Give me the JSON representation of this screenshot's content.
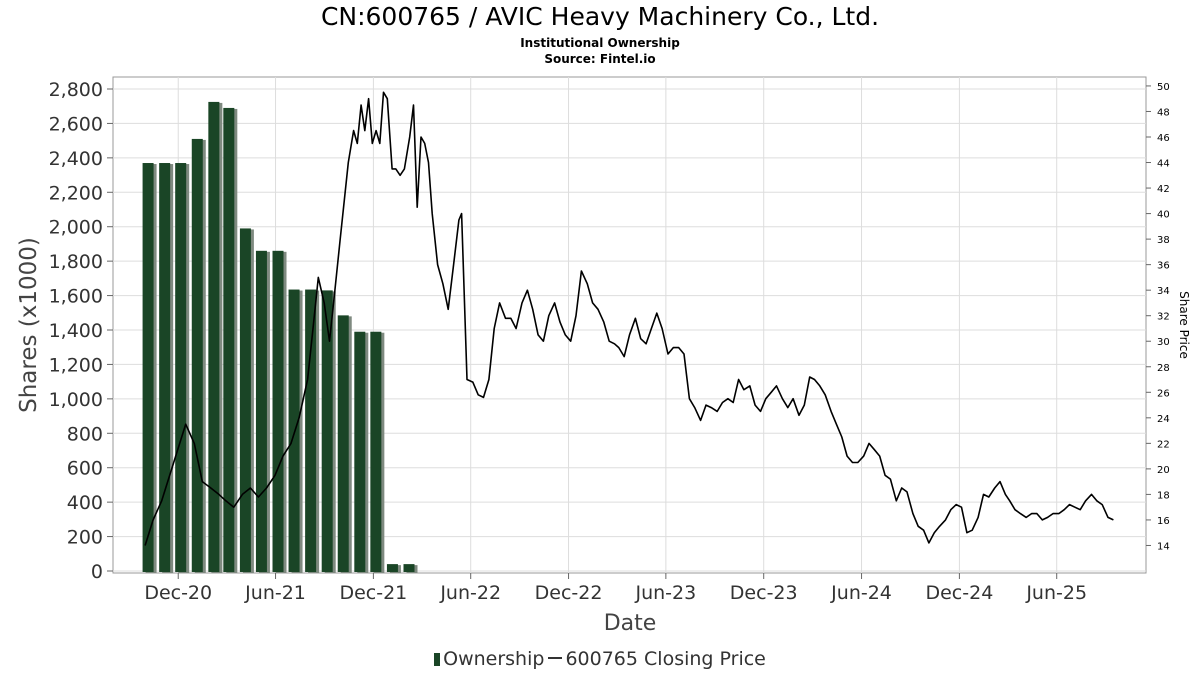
{
  "header": {
    "title": "CN:600765 / AVIC Heavy Machinery Co., Ltd.",
    "subtitle": "Institutional Ownership",
    "source": "Source: Fintel.io"
  },
  "legend": {
    "ownership": "Ownership",
    "price": "600765 Closing Price"
  },
  "colors": {
    "bar": "#1a4526",
    "bar_shadow": "#7f8a80",
    "price_line": "#000000",
    "grid": "#dddddd"
  },
  "chart_data": {
    "type": "bar",
    "xlabel": "Date",
    "ylabel": "Shares (x1000)",
    "y2label": "Share Price",
    "ylim": [
      0,
      2850
    ],
    "y2lim": [
      12.0,
      50.7
    ],
    "yticks": [
      0,
      200,
      400,
      600,
      800,
      1000,
      1200,
      1400,
      1600,
      1800,
      2000,
      2200,
      2400,
      2600,
      2800
    ],
    "yticklabels": [
      "0",
      "200",
      "400",
      "600",
      "800",
      "1,000",
      "1,200",
      "1,400",
      "1,600",
      "1,800",
      "2,000",
      "2,200",
      "2,400",
      "2,600",
      "2,800"
    ],
    "y2ticks": [
      14,
      16,
      18,
      20,
      22,
      24,
      26,
      28,
      30,
      32,
      34,
      36,
      38,
      40,
      42,
      44,
      46,
      48,
      50
    ],
    "xlim": [
      "2020-08-01",
      "2025-11-15"
    ],
    "xticks": [
      "2020-12-01",
      "2021-06-01",
      "2021-12-01",
      "2022-06-01",
      "2022-12-01",
      "2023-06-01",
      "2023-12-01",
      "2024-06-01",
      "2024-12-01",
      "2025-06-01"
    ],
    "xticklabels": [
      "Dec-20",
      "Jun-21",
      "Dec-21",
      "Jun-22",
      "Dec-22",
      "Jun-23",
      "Dec-23",
      "Jun-24",
      "Dec-24",
      "Jun-25"
    ],
    "grid": true,
    "legend_position": "bottom",
    "series": [
      {
        "name": "Ownership",
        "type": "bar",
        "dates": [
          "2020-09-30",
          "2020-10-31",
          "2020-11-30",
          "2020-12-31",
          "2021-01-31",
          "2021-02-28",
          "2021-03-31",
          "2021-04-30",
          "2021-05-31",
          "2021-06-30",
          "2021-07-31",
          "2021-08-31",
          "2021-09-30",
          "2021-10-31",
          "2021-11-30",
          "2021-12-31",
          "2022-01-31"
        ],
        "values": [
          2370,
          2370,
          2370,
          2510,
          2725,
          2690,
          1990,
          1860,
          1860,
          1635,
          1635,
          1630,
          1485,
          1390,
          1390,
          40,
          40
        ]
      },
      {
        "name": "600765 Closing Price",
        "type": "line",
        "points": [
          [
            "2020-09-30",
            14.0
          ],
          [
            "2020-10-15",
            16.0
          ],
          [
            "2020-10-31",
            17.5
          ],
          [
            "2020-11-15",
            19.5
          ],
          [
            "2020-11-30",
            21.5
          ],
          [
            "2020-12-15",
            23.5
          ],
          [
            "2020-12-31",
            22.0
          ],
          [
            "2021-01-15",
            19.0
          ],
          [
            "2021-01-31",
            18.5
          ],
          [
            "2021-02-15",
            18.0
          ],
          [
            "2021-02-28",
            17.5
          ],
          [
            "2021-03-15",
            17.0
          ],
          [
            "2021-03-31",
            18.0
          ],
          [
            "2021-04-15",
            18.5
          ],
          [
            "2021-04-30",
            17.8
          ],
          [
            "2021-05-15",
            18.5
          ],
          [
            "2021-05-31",
            19.5
          ],
          [
            "2021-06-15",
            21.0
          ],
          [
            "2021-06-30",
            22.0
          ],
          [
            "2021-07-15",
            24.0
          ],
          [
            "2021-07-31",
            27.0
          ],
          [
            "2021-08-10",
            31.0
          ],
          [
            "2021-08-20",
            35.0
          ],
          [
            "2021-08-31",
            33.0
          ],
          [
            "2021-09-10",
            30.0
          ],
          [
            "2021-09-20",
            34.0
          ],
          [
            "2021-09-30",
            38.0
          ],
          [
            "2021-10-05",
            40.0
          ],
          [
            "2021-10-15",
            44.0
          ],
          [
            "2021-10-25",
            46.5
          ],
          [
            "2021-11-01",
            45.5
          ],
          [
            "2021-11-08",
            48.5
          ],
          [
            "2021-11-15",
            46.5
          ],
          [
            "2021-11-22",
            49.0
          ],
          [
            "2021-11-29",
            45.5
          ],
          [
            "2021-12-06",
            46.5
          ],
          [
            "2021-12-13",
            45.5
          ],
          [
            "2021-12-20",
            49.5
          ],
          [
            "2021-12-27",
            49.0
          ],
          [
            "2022-01-05",
            43.5
          ],
          [
            "2022-01-12",
            43.5
          ],
          [
            "2022-01-20",
            43.0
          ],
          [
            "2022-01-28",
            43.5
          ],
          [
            "2022-02-07",
            46.0
          ],
          [
            "2022-02-14",
            48.5
          ],
          [
            "2022-02-21",
            40.5
          ],
          [
            "2022-02-28",
            46.0
          ],
          [
            "2022-03-07",
            45.5
          ],
          [
            "2022-03-14",
            44.0
          ],
          [
            "2022-03-21",
            40.0
          ],
          [
            "2022-03-31",
            36.0
          ],
          [
            "2022-04-10",
            34.5
          ],
          [
            "2022-04-20",
            32.5
          ],
          [
            "2022-04-30",
            36.0
          ],
          [
            "2022-05-10",
            39.5
          ],
          [
            "2022-05-15",
            40.0
          ],
          [
            "2022-05-25",
            27.0
          ],
          [
            "2022-06-05",
            26.8
          ],
          [
            "2022-06-15",
            25.8
          ],
          [
            "2022-06-25",
            25.6
          ],
          [
            "2022-07-05",
            27.0
          ],
          [
            "2022-07-15",
            31.0
          ],
          [
            "2022-07-25",
            33.0
          ],
          [
            "2022-08-05",
            31.8
          ],
          [
            "2022-08-15",
            31.8
          ],
          [
            "2022-08-25",
            31.0
          ],
          [
            "2022-09-05",
            33.0
          ],
          [
            "2022-09-15",
            34.0
          ],
          [
            "2022-09-25",
            32.5
          ],
          [
            "2022-10-05",
            30.5
          ],
          [
            "2022-10-15",
            30.0
          ],
          [
            "2022-10-25",
            32.0
          ],
          [
            "2022-11-05",
            33.0
          ],
          [
            "2022-11-15",
            31.5
          ],
          [
            "2022-11-25",
            30.5
          ],
          [
            "2022-12-05",
            30.0
          ],
          [
            "2022-12-15",
            32.0
          ],
          [
            "2022-12-25",
            35.5
          ],
          [
            "2023-01-05",
            34.5
          ],
          [
            "2023-01-15",
            33.0
          ],
          [
            "2023-01-25",
            32.5
          ],
          [
            "2023-02-05",
            31.5
          ],
          [
            "2023-02-15",
            30.0
          ],
          [
            "2023-02-25",
            29.8
          ],
          [
            "2023-03-05",
            29.5
          ],
          [
            "2023-03-15",
            28.8
          ],
          [
            "2023-03-25",
            30.5
          ],
          [
            "2023-04-05",
            31.8
          ],
          [
            "2023-04-15",
            30.2
          ],
          [
            "2023-04-25",
            29.8
          ],
          [
            "2023-05-05",
            31.0
          ],
          [
            "2023-05-15",
            32.2
          ],
          [
            "2023-05-25",
            31.0
          ],
          [
            "2023-06-05",
            29.0
          ],
          [
            "2023-06-15",
            29.5
          ],
          [
            "2023-06-25",
            29.5
          ],
          [
            "2023-07-05",
            29.0
          ],
          [
            "2023-07-15",
            25.5
          ],
          [
            "2023-07-25",
            24.8
          ],
          [
            "2023-08-05",
            23.8
          ],
          [
            "2023-08-15",
            25.0
          ],
          [
            "2023-08-25",
            24.8
          ],
          [
            "2023-09-05",
            24.5
          ],
          [
            "2023-09-15",
            25.2
          ],
          [
            "2023-09-25",
            25.5
          ],
          [
            "2023-10-05",
            25.2
          ],
          [
            "2023-10-15",
            27.0
          ],
          [
            "2023-10-25",
            26.2
          ],
          [
            "2023-11-05",
            26.5
          ],
          [
            "2023-11-15",
            25.0
          ],
          [
            "2023-11-25",
            24.5
          ],
          [
            "2023-12-05",
            25.5
          ],
          [
            "2023-12-15",
            26.0
          ],
          [
            "2023-12-25",
            26.5
          ],
          [
            "2024-01-05",
            25.5
          ],
          [
            "2024-01-15",
            24.8
          ],
          [
            "2024-01-25",
            25.5
          ],
          [
            "2024-02-05",
            24.2
          ],
          [
            "2024-02-15",
            25.0
          ],
          [
            "2024-02-25",
            27.2
          ],
          [
            "2024-03-05",
            27.0
          ],
          [
            "2024-03-15",
            26.5
          ],
          [
            "2024-03-25",
            25.8
          ],
          [
            "2024-04-05",
            24.5
          ],
          [
            "2024-04-15",
            23.5
          ],
          [
            "2024-04-25",
            22.5
          ],
          [
            "2024-05-05",
            21.0
          ],
          [
            "2024-05-15",
            20.5
          ],
          [
            "2024-05-25",
            20.5
          ],
          [
            "2024-06-05",
            21.0
          ],
          [
            "2024-06-15",
            22.0
          ],
          [
            "2024-06-25",
            21.5
          ],
          [
            "2024-07-05",
            21.0
          ],
          [
            "2024-07-15",
            19.5
          ],
          [
            "2024-07-25",
            19.2
          ],
          [
            "2024-08-05",
            17.5
          ],
          [
            "2024-08-15",
            18.5
          ],
          [
            "2024-08-25",
            18.2
          ],
          [
            "2024-09-05",
            16.5
          ],
          [
            "2024-09-15",
            15.5
          ],
          [
            "2024-09-25",
            15.2
          ],
          [
            "2024-10-05",
            14.2
          ],
          [
            "2024-10-15",
            15.0
          ],
          [
            "2024-10-25",
            15.5
          ],
          [
            "2024-11-05",
            16.0
          ],
          [
            "2024-11-15",
            16.8
          ],
          [
            "2024-11-25",
            17.2
          ],
          [
            "2024-12-05",
            17.0
          ],
          [
            "2024-12-15",
            15.0
          ],
          [
            "2024-12-25",
            15.2
          ],
          [
            "2025-01-05",
            16.2
          ],
          [
            "2025-01-15",
            18.0
          ],
          [
            "2025-01-25",
            17.8
          ],
          [
            "2025-02-05",
            18.5
          ],
          [
            "2025-02-15",
            19.0
          ],
          [
            "2025-02-25",
            18.0
          ],
          [
            "2025-03-05",
            17.5
          ],
          [
            "2025-03-15",
            16.8
          ],
          [
            "2025-03-25",
            16.5
          ],
          [
            "2025-04-05",
            16.2
          ],
          [
            "2025-04-15",
            16.5
          ],
          [
            "2025-04-25",
            16.5
          ],
          [
            "2025-05-05",
            16.0
          ],
          [
            "2025-05-15",
            16.2
          ],
          [
            "2025-05-25",
            16.5
          ],
          [
            "2025-06-05",
            16.5
          ],
          [
            "2025-06-15",
            16.8
          ],
          [
            "2025-06-25",
            17.2
          ],
          [
            "2025-07-05",
            17.0
          ],
          [
            "2025-07-15",
            16.8
          ],
          [
            "2025-07-25",
            17.5
          ],
          [
            "2025-08-05",
            18.0
          ],
          [
            "2025-08-15",
            17.5
          ],
          [
            "2025-08-25",
            17.2
          ],
          [
            "2025-09-05",
            16.2
          ],
          [
            "2025-09-15",
            16.0
          ]
        ]
      }
    ]
  }
}
